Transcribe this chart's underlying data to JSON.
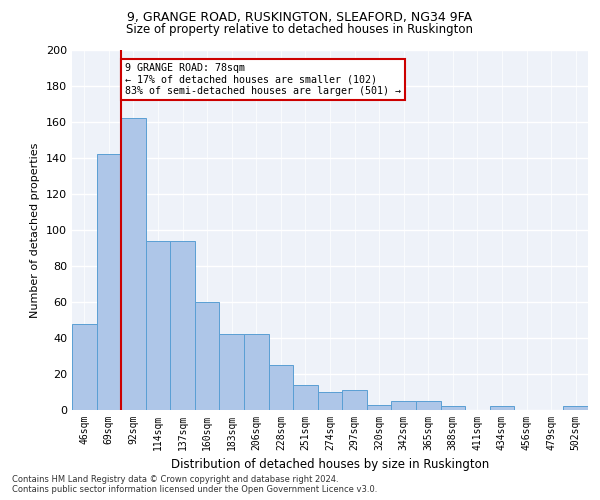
{
  "title1": "9, GRANGE ROAD, RUSKINGTON, SLEAFORD, NG34 9FA",
  "title2": "Size of property relative to detached houses in Ruskington",
  "xlabel": "Distribution of detached houses by size in Ruskington",
  "ylabel": "Number of detached properties",
  "categories": [
    "46sqm",
    "69sqm",
    "92sqm",
    "114sqm",
    "137sqm",
    "160sqm",
    "183sqm",
    "206sqm",
    "228sqm",
    "251sqm",
    "274sqm",
    "297sqm",
    "320sqm",
    "342sqm",
    "365sqm",
    "388sqm",
    "411sqm",
    "434sqm",
    "456sqm",
    "479sqm",
    "502sqm"
  ],
  "values": [
    48,
    142,
    162,
    94,
    94,
    60,
    42,
    42,
    25,
    14,
    10,
    11,
    3,
    5,
    5,
    2,
    0,
    2,
    0,
    0,
    2
  ],
  "bar_color": "#aec6e8",
  "bar_edge_color": "#5a9fd4",
  "annotation_text_line1": "9 GRANGE ROAD: 78sqm",
  "annotation_text_line2": "← 17% of detached houses are smaller (102)",
  "annotation_text_line3": "83% of semi-detached houses are larger (501) →",
  "annotation_box_color": "#ffffff",
  "annotation_box_edge_color": "#cc0000",
  "red_line_x": 1.5,
  "ylim": [
    0,
    200
  ],
  "yticks": [
    0,
    20,
    40,
    60,
    80,
    100,
    120,
    140,
    160,
    180,
    200
  ],
  "footnote1": "Contains HM Land Registry data © Crown copyright and database right 2024.",
  "footnote2": "Contains public sector information licensed under the Open Government Licence v3.0.",
  "bg_color": "#eef2f9"
}
